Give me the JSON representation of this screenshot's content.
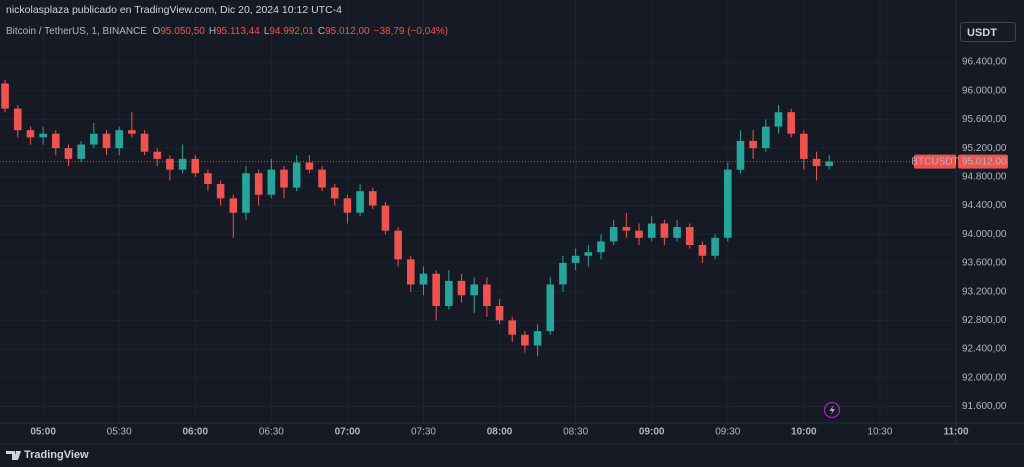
{
  "chart_data": {
    "type": "candlestick",
    "header": "nickolasplaza publicado en TradingView.com, Dic 20, 2024 10:12 UTC-4",
    "symbol_title": "Bitcoin / TetherUS, 1, BINANCE",
    "ohlc_legend": [
      {
        "label": "O",
        "value": "95.050,50"
      },
      {
        "label": "H",
        "value": "95.113,44"
      },
      {
        "label": "L",
        "value": "94.992,01"
      },
      {
        "label": "C",
        "value": "95.012,00"
      }
    ],
    "change": "−38,79 (−0,04%)",
    "currency": "USDT",
    "symbol": "BTCUSDT",
    "last_price": {
      "value": 95012,
      "label": "95.012,00"
    },
    "footer": "TradingView",
    "up_color": "#26a69a",
    "down_color": "#ef5350",
    "grid": true,
    "x": [
      "04:45",
      "04:50",
      "04:55",
      "05:00",
      "05:05",
      "05:10",
      "05:15",
      "05:20",
      "05:25",
      "05:30",
      "05:35",
      "05:40",
      "05:45",
      "05:50",
      "05:55",
      "06:00",
      "06:05",
      "06:10",
      "06:15",
      "06:20",
      "06:25",
      "06:30",
      "06:35",
      "06:40",
      "06:45",
      "06:50",
      "06:55",
      "07:00",
      "07:05",
      "07:10",
      "07:15",
      "07:20",
      "07:25",
      "07:30",
      "07:35",
      "07:40",
      "07:45",
      "07:50",
      "07:55",
      "08:00",
      "08:05",
      "08:10",
      "08:15",
      "08:20",
      "08:25",
      "08:30",
      "08:35",
      "08:40",
      "08:45",
      "08:50",
      "08:55",
      "09:00",
      "09:05",
      "09:10",
      "09:15",
      "09:20",
      "09:25",
      "09:30",
      "09:35",
      "09:40",
      "09:45",
      "09:50",
      "09:55",
      "10:00",
      "10:05",
      "10:10"
    ],
    "open": [
      96100,
      95750,
      95450,
      95350,
      95400,
      95200,
      95050,
      95250,
      95400,
      95200,
      95450,
      95400,
      95150,
      95050,
      94900,
      95050,
      94850,
      94700,
      94500,
      94300,
      94850,
      94550,
      94900,
      94650,
      95000,
      94900,
      94650,
      94500,
      94300,
      94600,
      94400,
      94050,
      93650,
      93300,
      93450,
      93000,
      93350,
      93150,
      93300,
      93000,
      92800,
      92600,
      92450,
      92650,
      93300,
      93600,
      93700,
      93750,
      93900,
      94100,
      94050,
      93950,
      94150,
      93950,
      94100,
      93850,
      93700,
      93950,
      94900,
      95300,
      95200,
      95500,
      95700,
      95400,
      95050,
      94950
    ],
    "high": [
      96150,
      95800,
      95500,
      95500,
      95450,
      95250,
      95300,
      95550,
      95450,
      95500,
      95700,
      95450,
      95200,
      95100,
      95250,
      95100,
      94900,
      94750,
      94550,
      94950,
      94900,
      95050,
      94950,
      95100,
      95100,
      94950,
      94700,
      94550,
      94700,
      94650,
      94450,
      94100,
      93700,
      93550,
      93500,
      93500,
      93450,
      93400,
      93400,
      93100,
      92850,
      92650,
      92750,
      93400,
      93700,
      93800,
      93850,
      94000,
      94200,
      94300,
      94150,
      94250,
      94200,
      94200,
      94150,
      93900,
      94000,
      95000,
      95450,
      95450,
      95600,
      95800,
      95750,
      95450,
      95150,
      95100
    ],
    "low": [
      95700,
      95350,
      95250,
      95250,
      95100,
      94950,
      95000,
      95200,
      95100,
      95100,
      95350,
      95100,
      94950,
      94750,
      94850,
      94800,
      94600,
      94400,
      93950,
      94200,
      94400,
      94500,
      94500,
      94600,
      94850,
      94600,
      94400,
      94150,
      94250,
      94350,
      94000,
      93550,
      93200,
      93150,
      92800,
      92950,
      93050,
      92900,
      92850,
      92750,
      92500,
      92350,
      92300,
      92600,
      93200,
      93500,
      93550,
      93650,
      93850,
      93950,
      93850,
      93900,
      93850,
      93900,
      93800,
      93600,
      93650,
      93900,
      94850,
      95050,
      95150,
      95400,
      95350,
      94900,
      94750,
      94900
    ],
    "close": [
      95750,
      95450,
      95350,
      95400,
      95200,
      95050,
      95250,
      95400,
      95200,
      95450,
      95400,
      95150,
      95050,
      94900,
      95050,
      94850,
      94700,
      94500,
      94300,
      94850,
      94550,
      94900,
      94650,
      95000,
      94900,
      94650,
      94500,
      94300,
      94600,
      94400,
      94050,
      93650,
      93300,
      93450,
      93000,
      93350,
      93150,
      93300,
      93000,
      92800,
      92600,
      92450,
      92650,
      93300,
      93600,
      93700,
      93750,
      93900,
      94100,
      94050,
      93950,
      94150,
      93950,
      94100,
      93850,
      93700,
      93950,
      94900,
      95300,
      95200,
      95500,
      95700,
      95400,
      95050,
      94950,
      95012
    ],
    "xlim": [
      "04:43",
      "11:00"
    ],
    "xticks": [
      "05:00",
      "05:30",
      "06:00",
      "06:30",
      "07:00",
      "07:30",
      "08:00",
      "08:30",
      "09:00",
      "09:30",
      "10:00",
      "10:30",
      "11:00"
    ],
    "ylim": [
      91370,
      96985
    ],
    "yticks": [
      {
        "value": 96400,
        "label": "96.400,00"
      },
      {
        "value": 96000,
        "label": "96.000,00"
      },
      {
        "value": 95600,
        "label": "95.600,00"
      },
      {
        "value": 95200,
        "label": "95.200,00"
      },
      {
        "value": 94800,
        "label": "94.800,00"
      },
      {
        "value": 94400,
        "label": "94.400,00"
      },
      {
        "value": 94000,
        "label": "94.000,00"
      },
      {
        "value": 93600,
        "label": "93.600,00"
      },
      {
        "value": 93200,
        "label": "93.200,00"
      },
      {
        "value": 92800,
        "label": "92.800,00"
      },
      {
        "value": 92400,
        "label": "92.400,00"
      },
      {
        "value": 92000,
        "label": "92.000,00"
      },
      {
        "value": 91600,
        "label": "91.600,00"
      }
    ]
  }
}
